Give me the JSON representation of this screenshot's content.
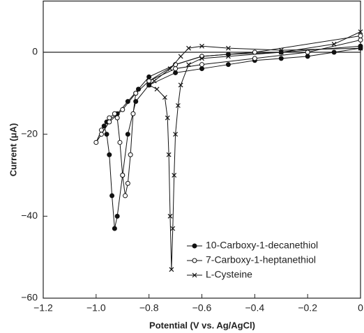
{
  "chart_data": {
    "type": "line",
    "xlabel": "Potential (V vs. Ag/AgCl)",
    "ylabel": "Current (μA)",
    "xlim": [
      -1.2,
      0
    ],
    "ylim": [
      -60,
      12.5
    ],
    "xticks": [
      {
        "value": -1.2,
        "label": "−1.2"
      },
      {
        "value": -1.0,
        "label": "−1.0"
      },
      {
        "value": -0.8,
        "label": "−0.8"
      },
      {
        "value": -0.6,
        "label": "−0.6"
      },
      {
        "value": -0.4,
        "label": "−0.4"
      },
      {
        "value": -0.2,
        "label": "−0.2"
      },
      0
    ],
    "yticks": [
      0,
      {
        "value": -20,
        "label": "−20"
      },
      {
        "value": -40,
        "label": "−40"
      },
      {
        "value": -60,
        "label": "−60"
      }
    ],
    "legend": "lower right",
    "series": [
      {
        "name": "10-Carboxy-1-decanethiol",
        "color": "#111",
        "marker": "filled-circle",
        "x": [
          0,
          -0.1,
          -0.2,
          -0.3,
          -0.4,
          -0.5,
          -0.6,
          -0.7,
          -0.8,
          -0.85,
          -0.88,
          -0.9,
          -0.92,
          -0.93,
          -0.94,
          -0.95,
          -0.96,
          -0.97,
          -0.96,
          -0.92,
          -0.88,
          -0.84,
          -0.8,
          -0.7,
          -0.6,
          -0.5,
          -0.3,
          0
        ],
        "values": [
          1,
          0,
          -1,
          -1.5,
          -2,
          -3,
          -4,
          -5,
          -8,
          -12,
          -20,
          -30,
          -40,
          -43,
          -35,
          -25,
          -20,
          -18,
          -17,
          -15,
          -12,
          -9,
          -6,
          -3,
          -1,
          -0.5,
          0,
          1.5
        ]
      },
      {
        "name": "7-Carboxy-1-heptanethiol",
        "color": "#111",
        "marker": "open-circle",
        "x": [
          0,
          -0.2,
          -0.4,
          -0.6,
          -0.7,
          -0.8,
          -0.85,
          -0.86,
          -0.87,
          -0.88,
          -0.89,
          -0.9,
          -0.91,
          -0.92,
          -0.93,
          -0.95,
          -0.98,
          -1.0,
          -0.98,
          -0.95,
          -0.9,
          -0.85,
          -0.8,
          -0.7,
          -0.6,
          -0.4,
          0
        ],
        "values": [
          3,
          0,
          -1.5,
          -3,
          -4,
          -7,
          -10,
          -15,
          -25,
          -32,
          -35,
          -30,
          -22,
          -16,
          -15,
          -16,
          -19,
          -22,
          -20,
          -17,
          -14,
          -10,
          -7,
          -3,
          -1,
          0,
          4
        ]
      },
      {
        "name": "L-Cysteine",
        "color": "#111",
        "marker": "cross",
        "x": [
          0,
          -0.1,
          -0.3,
          -0.5,
          -0.6,
          -0.65,
          -0.68,
          -0.69,
          -0.7,
          -0.705,
          -0.71,
          -0.715,
          -0.72,
          -0.725,
          -0.73,
          -0.74,
          -0.77,
          -0.8,
          -0.78,
          -0.72,
          -0.68,
          -0.65,
          -0.6,
          -0.5,
          -0.3,
          0
        ],
        "values": [
          5,
          2,
          0,
          -1,
          -1.5,
          -3,
          -8,
          -13,
          -20,
          -30,
          -43,
          -53,
          -40,
          -25,
          -16,
          -11,
          -9,
          -8,
          -7,
          -4,
          -1,
          1,
          1.5,
          1,
          0.5,
          1
        ]
      }
    ]
  }
}
